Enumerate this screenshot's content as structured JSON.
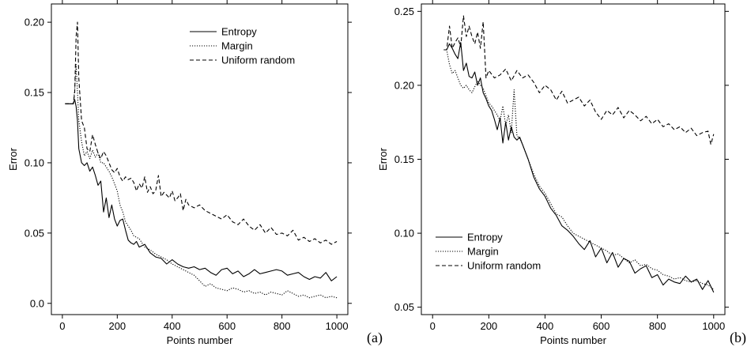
{
  "figure": {
    "panels": [
      "(a)",
      "(b)"
    ]
  },
  "chart_data": [
    {
      "type": "line",
      "panel_label": "(a)",
      "xlabel": "Points number",
      "ylabel": "Error",
      "xlim": [
        -40,
        1040
      ],
      "ylim": [
        -0.008,
        0.213
      ],
      "xticks": [
        0,
        200,
        400,
        600,
        800,
        1000
      ],
      "yticks": [
        0.0,
        0.05,
        0.1,
        0.15,
        0.2
      ],
      "ytick_labels": [
        "0.0",
        "0.05",
        "0.10",
        "0.15",
        "0.20"
      ],
      "grid": false,
      "legend_position": "top-right",
      "series": [
        {
          "name": "Entropy",
          "style": "solid",
          "x": [
            10,
            20,
            30,
            40,
            45,
            50,
            55,
            60,
            70,
            80,
            90,
            100,
            110,
            120,
            130,
            140,
            150,
            160,
            170,
            180,
            190,
            200,
            210,
            220,
            230,
            240,
            250,
            260,
            270,
            280,
            300,
            320,
            340,
            360,
            380,
            400,
            420,
            440,
            460,
            480,
            500,
            520,
            540,
            560,
            580,
            600,
            620,
            640,
            660,
            680,
            700,
            720,
            740,
            760,
            780,
            800,
            820,
            840,
            860,
            880,
            900,
            920,
            940,
            960,
            980,
            1000
          ],
          "y": [
            0.142,
            0.142,
            0.142,
            0.142,
            0.145,
            0.14,
            0.13,
            0.11,
            0.1,
            0.098,
            0.1,
            0.094,
            0.097,
            0.091,
            0.084,
            0.087,
            0.065,
            0.075,
            0.061,
            0.07,
            0.06,
            0.055,
            0.059,
            0.06,
            0.052,
            0.045,
            0.043,
            0.042,
            0.044,
            0.04,
            0.042,
            0.036,
            0.033,
            0.032,
            0.028,
            0.031,
            0.028,
            0.026,
            0.025,
            0.026,
            0.024,
            0.025,
            0.022,
            0.02,
            0.024,
            0.025,
            0.021,
            0.023,
            0.019,
            0.021,
            0.024,
            0.021,
            0.022,
            0.023,
            0.024,
            0.023,
            0.02,
            0.021,
            0.022,
            0.019,
            0.017,
            0.019,
            0.018,
            0.022,
            0.016,
            0.019
          ]
        },
        {
          "name": "Margin",
          "style": "dotted",
          "x": [
            10,
            20,
            30,
            40,
            45,
            50,
            55,
            60,
            70,
            80,
            90,
            100,
            110,
            120,
            130,
            140,
            150,
            160,
            170,
            180,
            190,
            200,
            210,
            220,
            230,
            240,
            250,
            260,
            280,
            300,
            320,
            340,
            360,
            380,
            400,
            420,
            440,
            460,
            480,
            500,
            520,
            540,
            560,
            580,
            600,
            620,
            640,
            660,
            680,
            700,
            720,
            740,
            760,
            780,
            800,
            820,
            840,
            860,
            880,
            900,
            920,
            940,
            960,
            980,
            1000
          ],
          "y": [
            0.142,
            0.142,
            0.142,
            0.142,
            0.152,
            0.17,
            0.15,
            0.13,
            0.115,
            0.105,
            0.108,
            0.103,
            0.109,
            0.104,
            0.107,
            0.1,
            0.1,
            0.097,
            0.094,
            0.09,
            0.085,
            0.08,
            0.07,
            0.065,
            0.058,
            0.055,
            0.052,
            0.048,
            0.046,
            0.04,
            0.038,
            0.035,
            0.033,
            0.031,
            0.028,
            0.026,
            0.024,
            0.022,
            0.02,
            0.016,
            0.012,
            0.014,
            0.011,
            0.01,
            0.009,
            0.011,
            0.01,
            0.008,
            0.009,
            0.007,
            0.008,
            0.006,
            0.008,
            0.007,
            0.006,
            0.009,
            0.007,
            0.005,
            0.006,
            0.004,
            0.005,
            0.006,
            0.004,
            0.005,
            0.004
          ]
        },
        {
          "name": "Uniform random",
          "style": "dashed",
          "x": [
            10,
            20,
            30,
            40,
            45,
            50,
            55,
            60,
            70,
            80,
            90,
            100,
            110,
            120,
            130,
            140,
            150,
            160,
            170,
            180,
            190,
            200,
            210,
            220,
            230,
            240,
            250,
            260,
            270,
            280,
            290,
            300,
            310,
            320,
            330,
            340,
            350,
            360,
            370,
            380,
            390,
            400,
            410,
            420,
            430,
            440,
            450,
            460,
            480,
            500,
            520,
            540,
            560,
            580,
            600,
            620,
            640,
            660,
            680,
            700,
            720,
            740,
            760,
            780,
            800,
            820,
            840,
            860,
            880,
            900,
            920,
            940,
            960,
            980,
            1000
          ],
          "y": [
            0.142,
            0.142,
            0.142,
            0.142,
            0.15,
            0.19,
            0.2,
            0.16,
            0.13,
            0.125,
            0.11,
            0.108,
            0.12,
            0.113,
            0.107,
            0.103,
            0.108,
            0.105,
            0.1,
            0.095,
            0.093,
            0.096,
            0.09,
            0.087,
            0.09,
            0.088,
            0.089,
            0.086,
            0.08,
            0.085,
            0.082,
            0.09,
            0.079,
            0.083,
            0.078,
            0.08,
            0.091,
            0.076,
            0.079,
            0.077,
            0.075,
            0.08,
            0.073,
            0.075,
            0.078,
            0.066,
            0.074,
            0.07,
            0.068,
            0.07,
            0.066,
            0.064,
            0.062,
            0.06,
            0.063,
            0.058,
            0.056,
            0.06,
            0.055,
            0.052,
            0.056,
            0.05,
            0.054,
            0.049,
            0.05,
            0.048,
            0.052,
            0.045,
            0.047,
            0.044,
            0.046,
            0.043,
            0.045,
            0.042,
            0.044
          ]
        }
      ]
    },
    {
      "type": "line",
      "panel_label": "(b)",
      "xlabel": "Points number",
      "ylabel": "Error",
      "xlim": [
        -40,
        1040
      ],
      "ylim": [
        0.045,
        0.255
      ],
      "xticks": [
        0,
        200,
        400,
        600,
        800,
        1000
      ],
      "yticks": [
        0.05,
        0.1,
        0.15,
        0.2,
        0.25
      ],
      "ytick_labels": [
        "0.05",
        "0.10",
        "0.15",
        "0.20",
        "0.25"
      ],
      "grid": false,
      "legend_position": "bottom-left",
      "series": [
        {
          "name": "Entropy",
          "style": "solid",
          "x": [
            40,
            50,
            60,
            70,
            80,
            90,
            100,
            110,
            120,
            130,
            140,
            150,
            160,
            170,
            180,
            190,
            200,
            210,
            220,
            230,
            240,
            250,
            260,
            270,
            280,
            290,
            300,
            310,
            320,
            340,
            360,
            380,
            400,
            420,
            440,
            460,
            480,
            500,
            520,
            540,
            560,
            580,
            600,
            620,
            640,
            660,
            680,
            700,
            720,
            740,
            760,
            780,
            800,
            820,
            840,
            860,
            880,
            900,
            920,
            940,
            960,
            980,
            1000
          ],
          "y": [
            0.224,
            0.224,
            0.228,
            0.225,
            0.221,
            0.218,
            0.229,
            0.21,
            0.215,
            0.206,
            0.205,
            0.209,
            0.2,
            0.205,
            0.195,
            0.191,
            0.186,
            0.183,
            0.177,
            0.17,
            0.178,
            0.161,
            0.175,
            0.163,
            0.172,
            0.165,
            0.163,
            0.165,
            0.16,
            0.15,
            0.138,
            0.13,
            0.125,
            0.117,
            0.112,
            0.105,
            0.102,
            0.098,
            0.093,
            0.089,
            0.095,
            0.084,
            0.09,
            0.08,
            0.087,
            0.077,
            0.083,
            0.081,
            0.073,
            0.076,
            0.078,
            0.07,
            0.072,
            0.065,
            0.069,
            0.067,
            0.066,
            0.071,
            0.067,
            0.069,
            0.062,
            0.068,
            0.06
          ]
        },
        {
          "name": "Margin",
          "style": "dotted",
          "x": [
            40,
            50,
            60,
            70,
            80,
            90,
            100,
            110,
            120,
            130,
            140,
            150,
            160,
            170,
            180,
            190,
            200,
            210,
            220,
            230,
            240,
            250,
            260,
            270,
            280,
            290,
            300,
            310,
            320,
            340,
            360,
            380,
            400,
            420,
            440,
            460,
            480,
            500,
            520,
            540,
            560,
            580,
            600,
            620,
            640,
            660,
            680,
            700,
            720,
            740,
            760,
            780,
            800,
            820,
            840,
            860,
            880,
            900,
            920,
            940,
            960,
            980,
            1000
          ],
          "y": [
            0.224,
            0.224,
            0.214,
            0.208,
            0.21,
            0.205,
            0.2,
            0.198,
            0.2,
            0.197,
            0.195,
            0.199,
            0.203,
            0.2,
            0.198,
            0.193,
            0.188,
            0.186,
            0.183,
            0.18,
            0.176,
            0.186,
            0.173,
            0.18,
            0.168,
            0.197,
            0.166,
            0.164,
            0.16,
            0.15,
            0.14,
            0.132,
            0.127,
            0.12,
            0.113,
            0.111,
            0.105,
            0.1,
            0.098,
            0.096,
            0.094,
            0.092,
            0.09,
            0.088,
            0.085,
            0.086,
            0.083,
            0.08,
            0.082,
            0.078,
            0.079,
            0.076,
            0.075,
            0.072,
            0.071,
            0.069,
            0.07,
            0.068,
            0.067,
            0.068,
            0.066,
            0.065,
            0.062
          ]
        },
        {
          "name": "Uniform random",
          "style": "dashed",
          "x": [
            40,
            50,
            60,
            70,
            80,
            90,
            100,
            110,
            120,
            130,
            140,
            150,
            160,
            170,
            180,
            190,
            200,
            220,
            240,
            260,
            280,
            300,
            320,
            340,
            360,
            380,
            400,
            420,
            440,
            460,
            480,
            500,
            520,
            540,
            560,
            580,
            600,
            620,
            640,
            660,
            680,
            700,
            720,
            740,
            760,
            780,
            800,
            820,
            840,
            860,
            880,
            900,
            920,
            940,
            960,
            980,
            990,
            1000
          ],
          "y": [
            0.224,
            0.224,
            0.24,
            0.225,
            0.229,
            0.232,
            0.226,
            0.247,
            0.233,
            0.24,
            0.233,
            0.228,
            0.236,
            0.225,
            0.243,
            0.205,
            0.21,
            0.205,
            0.207,
            0.211,
            0.203,
            0.21,
            0.205,
            0.207,
            0.202,
            0.195,
            0.2,
            0.197,
            0.19,
            0.196,
            0.188,
            0.19,
            0.192,
            0.186,
            0.19,
            0.182,
            0.177,
            0.183,
            0.18,
            0.185,
            0.178,
            0.183,
            0.18,
            0.176,
            0.179,
            0.174,
            0.177,
            0.172,
            0.174,
            0.17,
            0.172,
            0.168,
            0.171,
            0.166,
            0.168,
            0.169,
            0.16,
            0.167
          ]
        }
      ]
    }
  ]
}
